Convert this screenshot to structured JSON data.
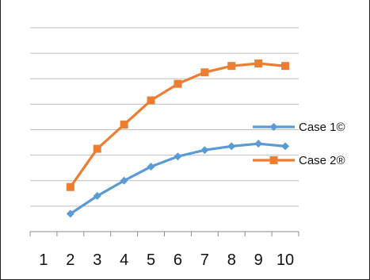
{
  "chart_data": {
    "type": "line",
    "title": "",
    "xlabel": "",
    "ylabel": "",
    "x": [
      2,
      3,
      4,
      5,
      6,
      7,
      8,
      9,
      10
    ],
    "categories": [
      "1",
      "2",
      "3",
      "4",
      "5",
      "6",
      "7",
      "8",
      "9",
      "10"
    ],
    "ylim": [
      0,
      8
    ],
    "grid": true,
    "legend_position": "right",
    "series": [
      {
        "name": "Case 1©",
        "color": "#5B9BD5",
        "marker": "diamond",
        "values": [
          0.7,
          1.4,
          2.0,
          2.55,
          2.95,
          3.2,
          3.35,
          3.45,
          3.35
        ]
      },
      {
        "name": "Case 2®",
        "color": "#ED7D31",
        "marker": "square",
        "values": [
          1.75,
          3.25,
          4.2,
          5.15,
          5.8,
          6.25,
          6.5,
          6.6,
          6.5
        ]
      }
    ]
  }
}
